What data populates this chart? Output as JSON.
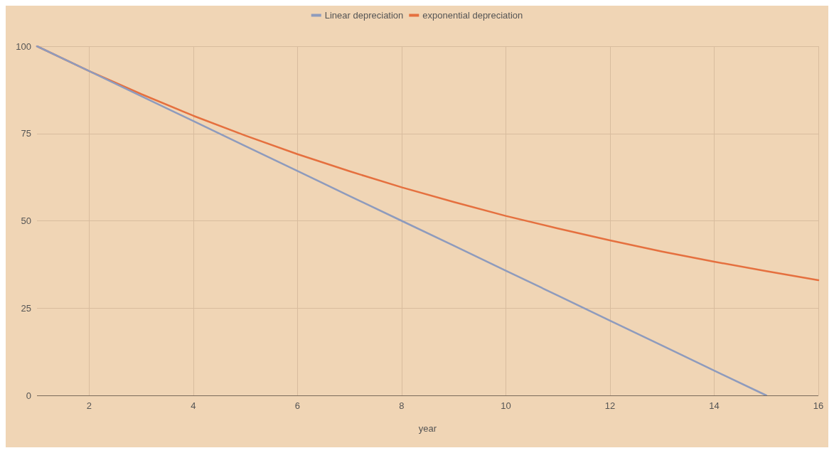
{
  "chart_data": {
    "type": "line",
    "xlabel": "year",
    "xlim": [
      1,
      16
    ],
    "xticks": [
      2,
      4,
      6,
      8,
      10,
      12,
      14,
      16
    ],
    "ylim": [
      0,
      100
    ],
    "yticks": [
      0,
      25,
      50,
      75,
      100
    ],
    "grid": true,
    "legend": "top",
    "marker": "none",
    "line_style": "solid",
    "series": [
      {
        "name": "Linear depreciation",
        "color": "#8e9bbd",
        "x": [
          1,
          2,
          3,
          4,
          5,
          6,
          7,
          8,
          9,
          10,
          11,
          12,
          13,
          14,
          15
        ],
        "values": [
          100,
          92.9,
          85.7,
          78.6,
          71.4,
          64.3,
          57.1,
          50,
          42.9,
          35.7,
          28.6,
          21.4,
          14.3,
          7.1,
          0
        ]
      },
      {
        "name": "exponential depreciation",
        "color": "#e5703f",
        "x": [
          1,
          2,
          3,
          4,
          5,
          6,
          7,
          8,
          9,
          10,
          11,
          12,
          13,
          14,
          15,
          16
        ],
        "values": [
          100,
          92.9,
          86.3,
          80.1,
          74.4,
          69.1,
          64.2,
          59.6,
          55.4,
          51.4,
          47.8,
          44.4,
          41.2,
          38.3,
          35.6,
          33.0
        ]
      }
    ]
  }
}
